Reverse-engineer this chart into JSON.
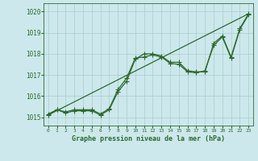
{
  "title": "Graphe pression niveau de la mer (hPa)",
  "background_color": "#cce8ec",
  "grid_color": "#aacccc",
  "line_color": "#2d6a2d",
  "xlim": [
    -0.5,
    23.5
  ],
  "ylim": [
    1014.6,
    1020.4
  ],
  "xticks": [
    0,
    1,
    2,
    3,
    4,
    5,
    6,
    7,
    8,
    9,
    10,
    11,
    12,
    13,
    14,
    15,
    16,
    17,
    18,
    19,
    20,
    21,
    22,
    23
  ],
  "yticks": [
    1015,
    1016,
    1017,
    1018,
    1019,
    1020
  ],
  "series1": {
    "x": [
      0,
      1,
      2,
      3,
      4,
      5,
      6,
      7,
      8,
      9,
      10,
      11,
      12,
      13,
      14,
      15,
      16,
      17,
      18,
      19,
      20,
      21,
      22,
      23
    ],
    "y": [
      1015.1,
      1015.35,
      1015.2,
      1015.3,
      1015.3,
      1015.3,
      1015.1,
      1015.35,
      1016.2,
      1016.7,
      1017.75,
      1018.0,
      1018.0,
      1017.9,
      1017.6,
      1017.6,
      1017.2,
      1017.15,
      1017.15,
      1018.5,
      1018.85,
      1017.85,
      1019.2,
      1019.9
    ]
  },
  "series2": {
    "x": [
      0,
      1,
      2,
      3,
      4,
      5,
      6,
      7,
      8,
      9,
      10,
      11,
      12,
      13,
      14,
      15,
      16,
      17,
      18,
      19,
      20,
      21,
      22,
      23
    ],
    "y": [
      1015.15,
      1015.35,
      1015.25,
      1015.35,
      1015.35,
      1015.35,
      1015.15,
      1015.4,
      1016.3,
      1016.85,
      1017.8,
      1017.85,
      1017.95,
      1017.85,
      1017.55,
      1017.5,
      1017.15,
      1017.1,
      1017.2,
      1018.4,
      1018.8,
      1017.8,
      1019.15,
      1019.85
    ]
  },
  "series3_x": [
    0,
    23
  ],
  "series3_y": [
    1015.1,
    1019.9
  ],
  "marker": "+",
  "markersize": 4,
  "linewidth": 0.9
}
